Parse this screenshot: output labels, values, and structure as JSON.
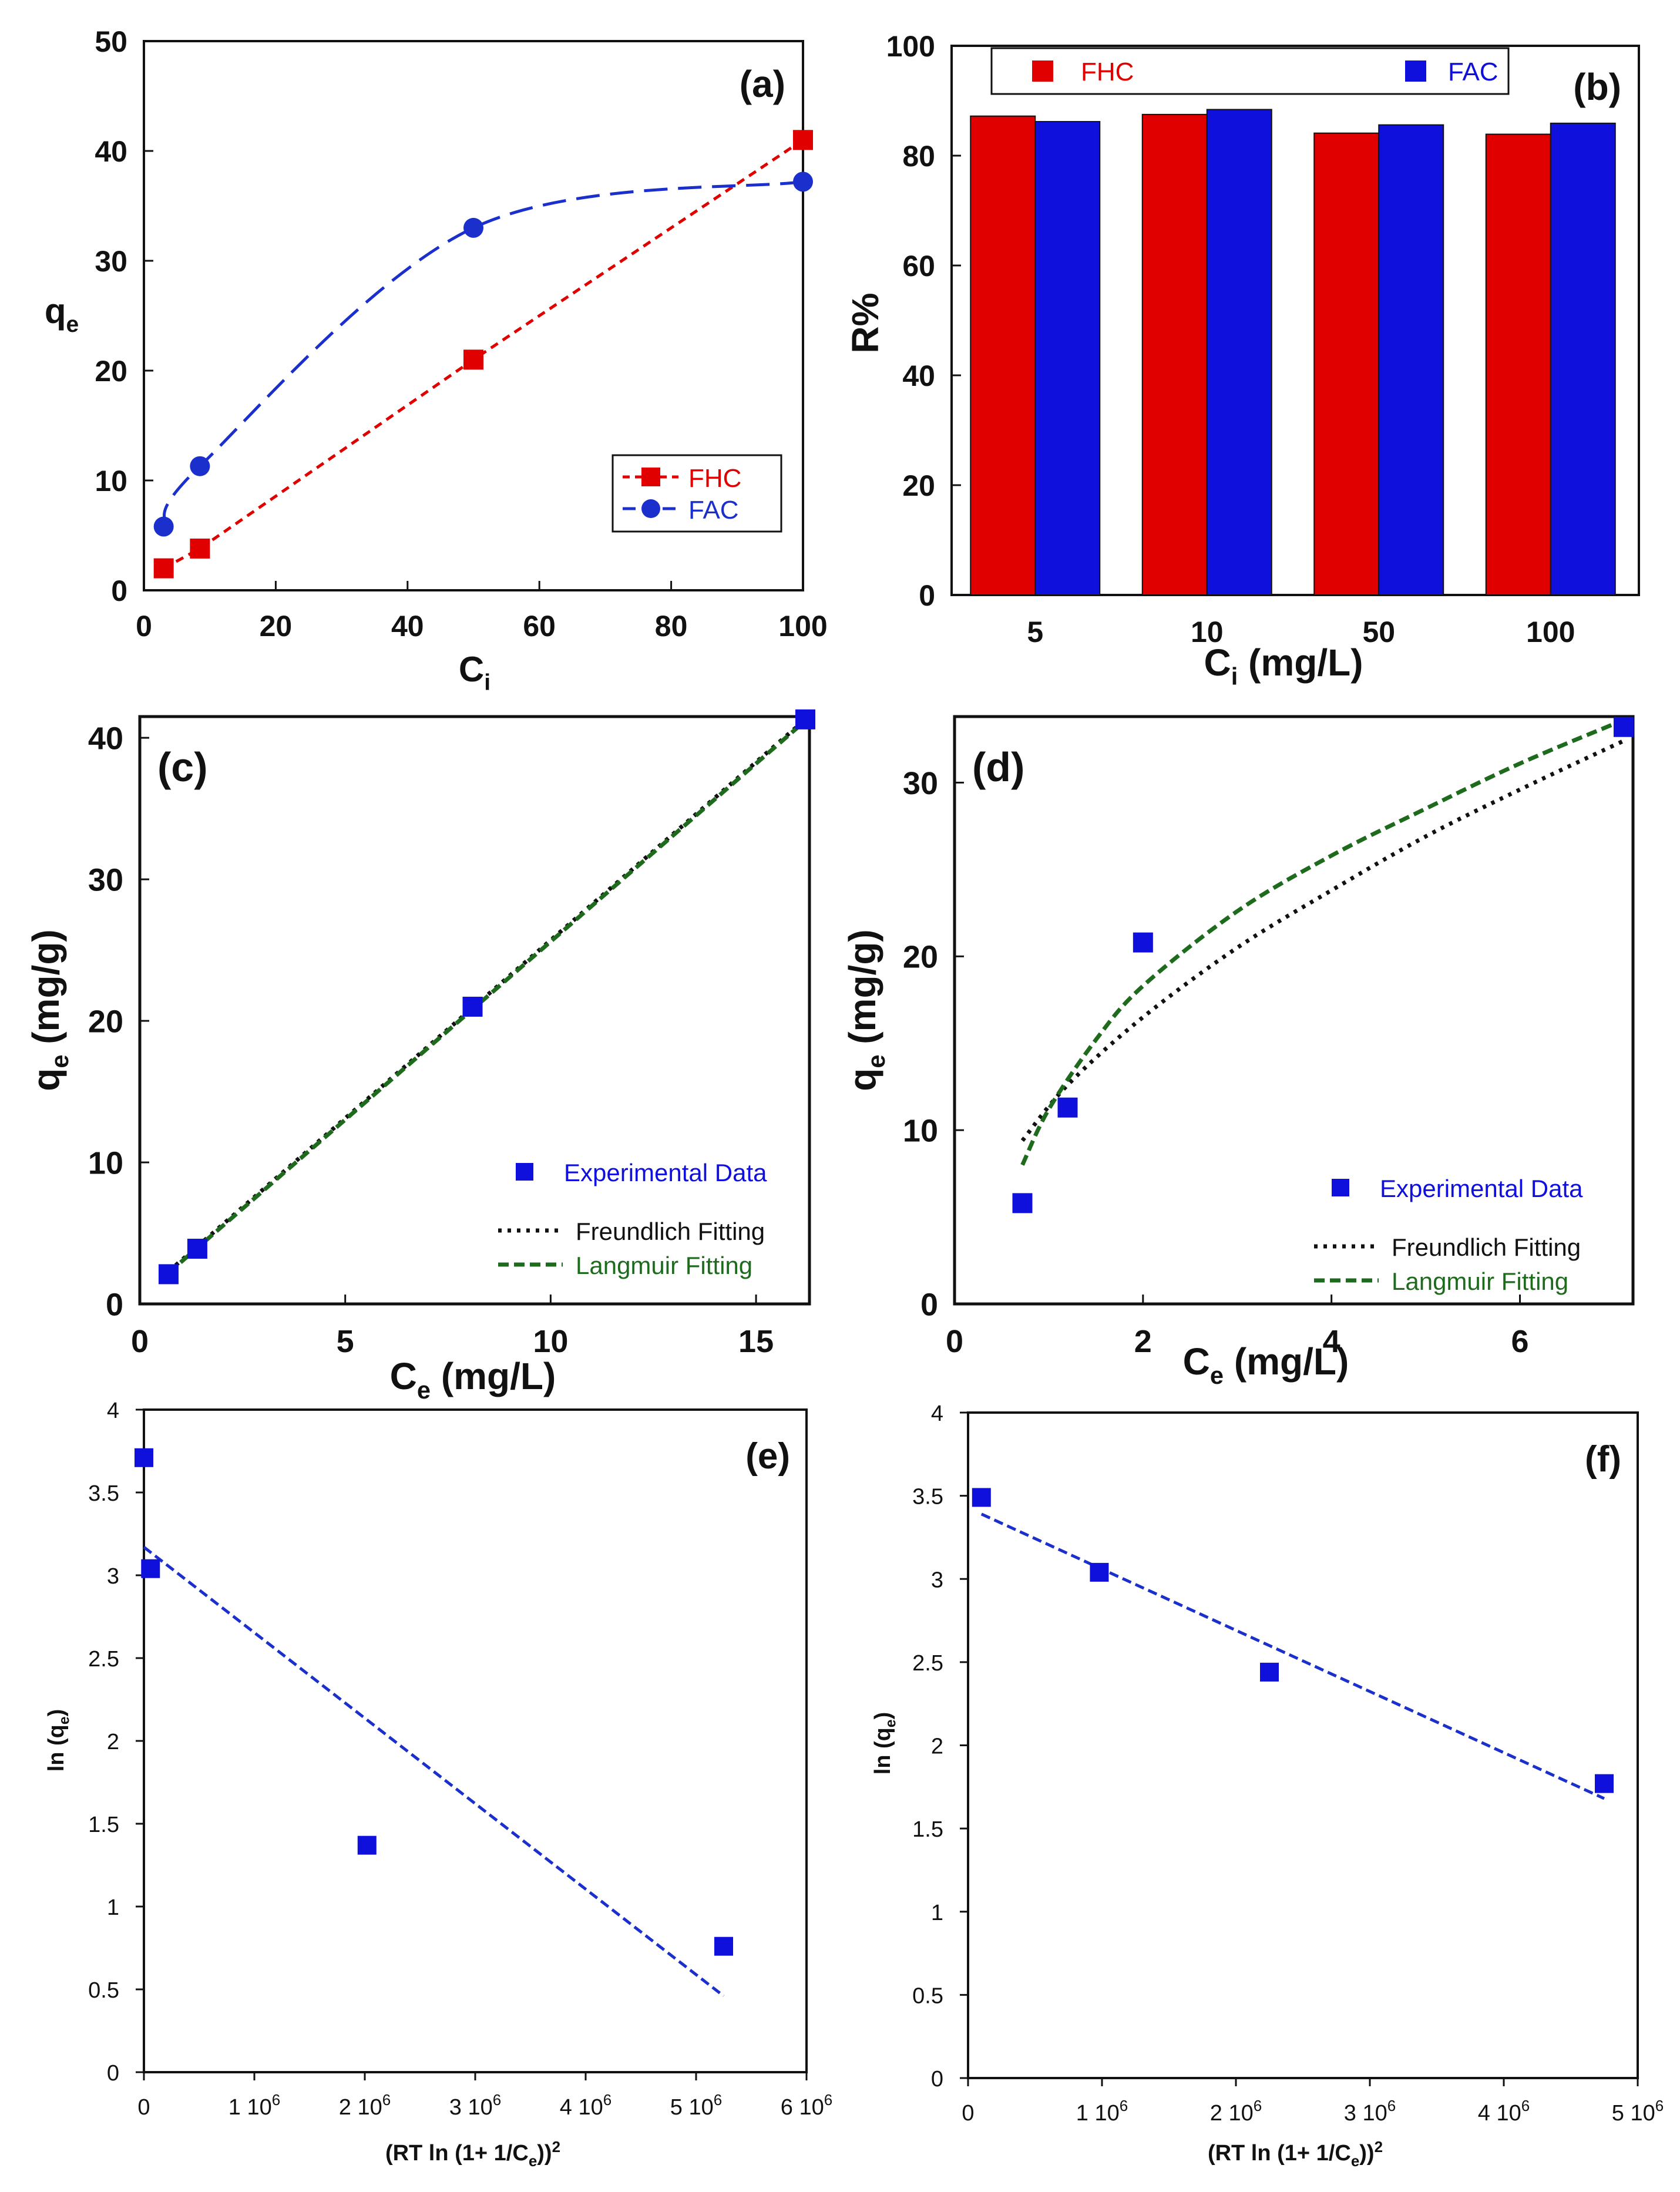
{
  "chart_data": [
    {
      "id": "a",
      "type": "line",
      "tag": "(a)",
      "xlabel": "C",
      "xlabel_sub": "i",
      "ylabel": "q",
      "ylabel_sub": "e",
      "xlim": [
        0,
        100
      ],
      "ylim": [
        0,
        50
      ],
      "xticks": [
        0,
        20,
        40,
        60,
        80,
        100
      ],
      "yticks": [
        0,
        10,
        20,
        30,
        40,
        50
      ],
      "legend_position": "bottom-right",
      "series": [
        {
          "name": "FHC",
          "color": "#e00000",
          "marker": "square",
          "line": "dashed",
          "x": [
            3,
            8.5,
            50,
            100
          ],
          "y": [
            2,
            3.8,
            21,
            41
          ]
        },
        {
          "name": "FAC",
          "color": "#1a2fcc",
          "marker": "circle",
          "line": "long-dash",
          "x": [
            3,
            8.5,
            50,
            100
          ],
          "y": [
            5.8,
            11.3,
            33,
            37.2
          ]
        }
      ]
    },
    {
      "id": "b",
      "type": "bar",
      "tag": "(b)",
      "xlabel": "C",
      "xlabel_sub": "i",
      "xlabel_unit": " (mg/L)",
      "ylabel": "R%",
      "ylim": [
        0,
        100
      ],
      "yticks": [
        0,
        20,
        40,
        60,
        80,
        100
      ],
      "categories": [
        "5",
        "10",
        "50",
        "100"
      ],
      "legend_position": "top",
      "series": [
        {
          "name": "FHC",
          "color": "#e00000",
          "values": [
            87.2,
            87.5,
            84.1,
            83.9
          ]
        },
        {
          "name": "FAC",
          "color": "#1010dd",
          "values": [
            86.2,
            88.4,
            85.6,
            85.9
          ]
        }
      ]
    },
    {
      "id": "c",
      "type": "scatter",
      "tag": "(c)",
      "xlabel": "C",
      "xlabel_sub": "e",
      "xlabel_unit": " (mg/L)",
      "ylabel": "q",
      "ylabel_sub": "e",
      "ylabel_unit": " (mg/g)",
      "xlim": [
        0,
        16.3
      ],
      "ylim": [
        0,
        41.5
      ],
      "xticks": [
        0,
        5,
        10,
        15
      ],
      "yticks": [
        0,
        10,
        20,
        30,
        40
      ],
      "legend_position": "bottom-right",
      "points": {
        "name": "Experimental Data",
        "color": "#1010dd",
        "x": [
          0.7,
          1.4,
          8.1,
          16.2
        ],
        "y": [
          2.1,
          3.9,
          21,
          41.3
        ]
      },
      "fits": [
        {
          "name": "Freundlich Fitting",
          "color": "#111111",
          "style": "dotted",
          "x": [
            0.7,
            16.2
          ],
          "y": [
            2.3,
            41.3
          ]
        },
        {
          "name": "Langmuir Fitting",
          "color": "#1e6b1e",
          "style": "dashed",
          "x": [
            0.7,
            16.2
          ],
          "y": [
            2.2,
            41.2
          ]
        }
      ]
    },
    {
      "id": "d",
      "type": "scatter",
      "tag": "(d)",
      "xlabel": "C",
      "xlabel_sub": "e",
      "xlabel_unit": " (mg/L)",
      "ylabel": "q",
      "ylabel_sub": "e",
      "ylabel_unit": " (mg/g)",
      "xlim": [
        0,
        7.2
      ],
      "ylim": [
        0,
        33.8
      ],
      "xticks": [
        0,
        2,
        4,
        6
      ],
      "yticks": [
        0,
        10,
        20,
        30
      ],
      "legend_position": "bottom-right",
      "points": {
        "name": "Experimental Data",
        "color": "#1010dd",
        "x": [
          0.72,
          1.2,
          2.0,
          7.1
        ],
        "y": [
          5.8,
          11.3,
          20.8,
          33.2
        ]
      },
      "fits": [
        {
          "name": "Freundlich Fitting",
          "color": "#111111",
          "style": "dotted",
          "x": [
            0.72,
            1.2,
            2,
            3,
            4,
            5,
            6,
            7.1
          ],
          "y": [
            9.4,
            12.6,
            16.5,
            20.5,
            23.8,
            26.9,
            29.6,
            32.4
          ]
        },
        {
          "name": "Langmuir Fitting",
          "color": "#1e6b1e",
          "style": "dashed",
          "x": [
            0.72,
            1.0,
            1.5,
            2,
            3,
            4,
            5,
            6,
            7.1
          ],
          "y": [
            8.0,
            11.2,
            15.2,
            18.3,
            22.6,
            25.8,
            28.5,
            31.1,
            33.6
          ]
        }
      ]
    },
    {
      "id": "e",
      "type": "scatter",
      "tag": "(e)",
      "xlabel": "(RT ln (1+ 1/C",
      "xlabel_sub": "e",
      "xlabel_tail": "))",
      "xlabel_sup": "2",
      "ylabel": "ln (q",
      "ylabel_sub": "e",
      "ylabel_tail": ")",
      "xlim": [
        0,
        6000000
      ],
      "ylim": [
        0,
        4
      ],
      "xticks": [
        {
          "value": 0,
          "label": "0"
        },
        {
          "value": 1000000,
          "label": "1 10",
          "sup": "6"
        },
        {
          "value": 2000000,
          "label": "2 10",
          "sup": "6"
        },
        {
          "value": 3000000,
          "label": "3 10",
          "sup": "6"
        },
        {
          "value": 4000000,
          "label": "4 10",
          "sup": "6"
        },
        {
          "value": 5000000,
          "label": "5 10",
          "sup": "6"
        },
        {
          "value": 6000000,
          "label": "6 10",
          "sup": "6"
        }
      ],
      "yticks": [
        {
          "value": 0,
          "label": "0"
        },
        {
          "value": 0.5,
          "label": "0.5"
        },
        {
          "value": 1,
          "label": "1"
        },
        {
          "value": 1.5,
          "label": "1.5"
        },
        {
          "value": 2,
          "label": "2"
        },
        {
          "value": 2.5,
          "label": "2.5"
        },
        {
          "value": 3,
          "label": "3"
        },
        {
          "value": 3.5,
          "label": "3.5"
        },
        {
          "value": 4,
          "label": "4"
        }
      ],
      "points": {
        "color": "#1010dd",
        "x": [
          0,
          60000,
          2020000,
          5250000
        ],
        "y": [
          3.71,
          3.04,
          1.37,
          0.76
        ]
      },
      "fits": [
        {
          "color": "#1a2fcc",
          "style": "dashed",
          "x": [
            0,
            5250000
          ],
          "y": [
            3.17,
            0.46
          ]
        }
      ]
    },
    {
      "id": "f",
      "type": "scatter",
      "tag": "(f)",
      "xlabel": "(RT ln (1+ 1/C",
      "xlabel_sub": "e",
      "xlabel_tail": "))",
      "xlabel_sup": "2",
      "ylabel": "ln (q",
      "ylabel_sub": "e",
      "ylabel_tail": ")",
      "xlim": [
        0,
        5000000
      ],
      "ylim": [
        0,
        4
      ],
      "xticks": [
        {
          "value": 0,
          "label": "0"
        },
        {
          "value": 1000000,
          "label": "1 10",
          "sup": "6"
        },
        {
          "value": 2000000,
          "label": "2 10",
          "sup": "6"
        },
        {
          "value": 3000000,
          "label": "3 10",
          "sup": "6"
        },
        {
          "value": 4000000,
          "label": "4 10",
          "sup": "6"
        },
        {
          "value": 5000000,
          "label": "5 10",
          "sup": "6"
        }
      ],
      "yticks": [
        {
          "value": 0,
          "label": "0"
        },
        {
          "value": 0.5,
          "label": "0.5"
        },
        {
          "value": 1,
          "label": "1"
        },
        {
          "value": 1.5,
          "label": "1.5"
        },
        {
          "value": 2,
          "label": "2"
        },
        {
          "value": 2.5,
          "label": "2.5"
        },
        {
          "value": 3,
          "label": "3"
        },
        {
          "value": 3.5,
          "label": "3.5"
        },
        {
          "value": 4,
          "label": "4"
        }
      ],
      "points": {
        "color": "#1010dd",
        "x": [
          100000,
          980000,
          2250000,
          4750000
        ],
        "y": [
          3.49,
          3.04,
          2.44,
          1.77
        ]
      },
      "fits": [
        {
          "color": "#1a2fcc",
          "style": "dashed",
          "x": [
            100000,
            4750000
          ],
          "y": [
            3.39,
            1.68
          ]
        }
      ]
    }
  ]
}
